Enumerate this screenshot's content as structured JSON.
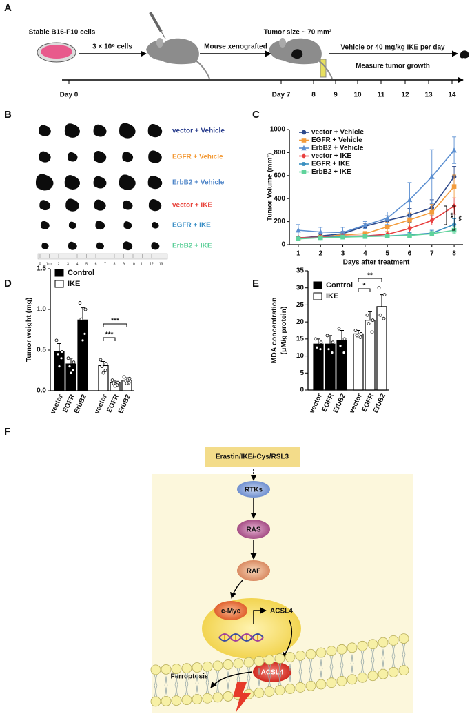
{
  "panel_labels": [
    "A",
    "B",
    "C",
    "D",
    "E",
    "F"
  ],
  "schematic": {
    "cells_label": "Stable B16-F10  cells",
    "cells_count": "3 × 10⁶ cells",
    "xenograft": "Mouse xenografted",
    "tumor_size": "Tumor size ~ 70 mm³",
    "treatment": "Vehicle or 40 mg/kg IKE per day",
    "measure": "Measure tumor growth",
    "timeline": [
      "Day 0",
      "Day 7",
      "8",
      "9",
      "10",
      "11",
      "12",
      "13",
      "14"
    ]
  },
  "tumor_photo": {
    "groups": [
      {
        "label": "vector + Vehicle",
        "color": "#2b3f8e"
      },
      {
        "label": "EGFR + Vehicle",
        "color": "#f39a36"
      },
      {
        "label": "ErbB2 + Vehicle",
        "color": "#4f86c9"
      },
      {
        "label": "vector + IKE",
        "color": "#e8453c"
      },
      {
        "label": "EGFR + IKE",
        "color": "#3b8fc6"
      },
      {
        "label": "ErbB2 + IKE",
        "color": "#5bcf98"
      }
    ],
    "ruler": [
      "0",
      "1cm",
      "2",
      "3",
      "4",
      "5",
      "6",
      "7",
      "8",
      "9",
      "10",
      "11",
      "12",
      "13"
    ]
  },
  "chart_data": [
    {
      "type": "line",
      "x": [
        1,
        2,
        3,
        4,
        5,
        6,
        7,
        8
      ],
      "xlim": [
        0.6,
        8.4
      ],
      "xticks": [
        1,
        2,
        3,
        4,
        5,
        6,
        7,
        8
      ],
      "ylim": [
        0,
        1000
      ],
      "yticks": [
        0,
        200,
        400,
        600,
        800,
        1000
      ],
      "x_label": "Days after treatment",
      "y_label": "Tumor Volume (mm³)",
      "series": [
        {
          "name": "vector + Vehicle",
          "color": "#2e4a8b",
          "marker": "circle",
          "values": [
            55,
            75,
            95,
            160,
            210,
            255,
            320,
            590
          ],
          "errors": [
            15,
            20,
            20,
            25,
            40,
            60,
            70,
            90
          ]
        },
        {
          "name": "EGFR + Vehicle",
          "color": "#f39c3c",
          "marker": "square",
          "values": [
            50,
            65,
            85,
            95,
            155,
            215,
            280,
            505
          ],
          "errors": [
            12,
            15,
            20,
            20,
            40,
            60,
            70,
            100
          ]
        },
        {
          "name": "ErbB2 + Vehicle",
          "color": "#5b8fd1",
          "marker": "triangle",
          "values": [
            125,
            110,
            105,
            170,
            230,
            390,
            590,
            820
          ],
          "errors": [
            50,
            40,
            45,
            30,
            55,
            150,
            235,
            115
          ]
        },
        {
          "name": "vector + IKE",
          "color": "#e84040",
          "marker": "diamond",
          "values": [
            60,
            65,
            75,
            75,
            90,
            140,
            210,
            335
          ],
          "errors": [
            10,
            12,
            15,
            15,
            20,
            30,
            40,
            70
          ]
        },
        {
          "name": "EGFR + IKE",
          "color": "#3a8fc0",
          "marker": "hexagon",
          "values": [
            55,
            60,
            70,
            75,
            75,
            85,
            100,
            175
          ],
          "errors": [
            8,
            10,
            12,
            12,
            15,
            20,
            25,
            50
          ]
        },
        {
          "name": "ErbB2 + IKE",
          "color": "#5fd39c",
          "marker": "square",
          "values": [
            50,
            60,
            65,
            70,
            75,
            80,
            95,
            125
          ],
          "errors": [
            8,
            10,
            10,
            10,
            12,
            15,
            20,
            30
          ]
        }
      ],
      "annotations": [
        "**",
        "**"
      ]
    },
    {
      "type": "bar",
      "categories": [
        "vector",
        "EGFR",
        "ErbB2"
      ],
      "ylim": [
        0,
        1.5
      ],
      "yticks": [
        {
          "value": 0,
          "label": "0.0"
        },
        {
          "value": 0.5,
          "label": "0.5"
        },
        {
          "value": 1,
          "label": "1.0"
        },
        {
          "value": 1.5,
          "label": "1.5"
        }
      ],
      "y_label": [
        "Tumor weight (mg)"
      ],
      "series": [
        {
          "name": "Control",
          "color": "#000000",
          "values": [
            0.48,
            0.33,
            0.87
          ],
          "errors": [
            0.1,
            0.07,
            0.15
          ],
          "points": [
            [
              0.62,
              0.48,
              0.45,
              0.4,
              0.3
            ],
            [
              0.4,
              0.35,
              0.3,
              0.25,
              0.22
            ],
            [
              1.08,
              1,
              0.88,
              0.7,
              0.62
            ]
          ]
        },
        {
          "name": "IKE",
          "color": "#ffffff",
          "values": [
            0.31,
            0.1,
            0.13
          ],
          "errors": [
            0.05,
            0.03,
            0.03
          ],
          "points": [
            [
              0.38,
              0.33,
              0.3,
              0.25,
              0.22
            ],
            [
              0.13,
              0.1,
              0.09,
              0.07,
              0.06
            ],
            [
              0.17,
              0.15,
              0.12,
              0.1,
              0.09
            ]
          ]
        }
      ],
      "annotations": [
        "***",
        "***"
      ]
    },
    {
      "type": "bar",
      "categories": [
        "vector",
        "EGFR",
        "ErbB2"
      ],
      "ylim": [
        0,
        35
      ],
      "yticks": [
        0,
        5,
        10,
        15,
        20,
        25,
        30,
        35
      ],
      "y_label": [
        "MDA concentration",
        "(μM/g protein)"
      ],
      "series": [
        {
          "name": "Control",
          "color": "#000000",
          "values": [
            13.5,
            13.5,
            14.5
          ],
          "errors": [
            1.5,
            2.5,
            3
          ],
          "points": [
            [
              15,
              14,
              12.5,
              12
            ],
            [
              16,
              14,
              12,
              11
            ],
            [
              18,
              15,
              13,
              11
            ]
          ]
        },
        {
          "name": "IKE",
          "color": "#ffffff",
          "values": [
            16.5,
            20.5,
            24.5
          ],
          "errors": [
            1,
            2.5,
            3.5
          ],
          "points": [
            [
              17.5,
              16.5,
              16,
              15.5
            ],
            [
              22,
              20.5,
              19.5,
              17
            ],
            [
              30,
              28,
              22,
              21
            ]
          ]
        }
      ],
      "annotations": [
        "**",
        "*"
      ]
    }
  ],
  "pathway": {
    "drugs": "Erastin/IKE/-Cys/RSL3",
    "rtk": "RTKs",
    "ras": "RAS",
    "raf": "RAF",
    "myc": "c-Myc",
    "gene": "ACSL4",
    "protein": "ACSL4",
    "outcome": "Ferroptosis"
  }
}
